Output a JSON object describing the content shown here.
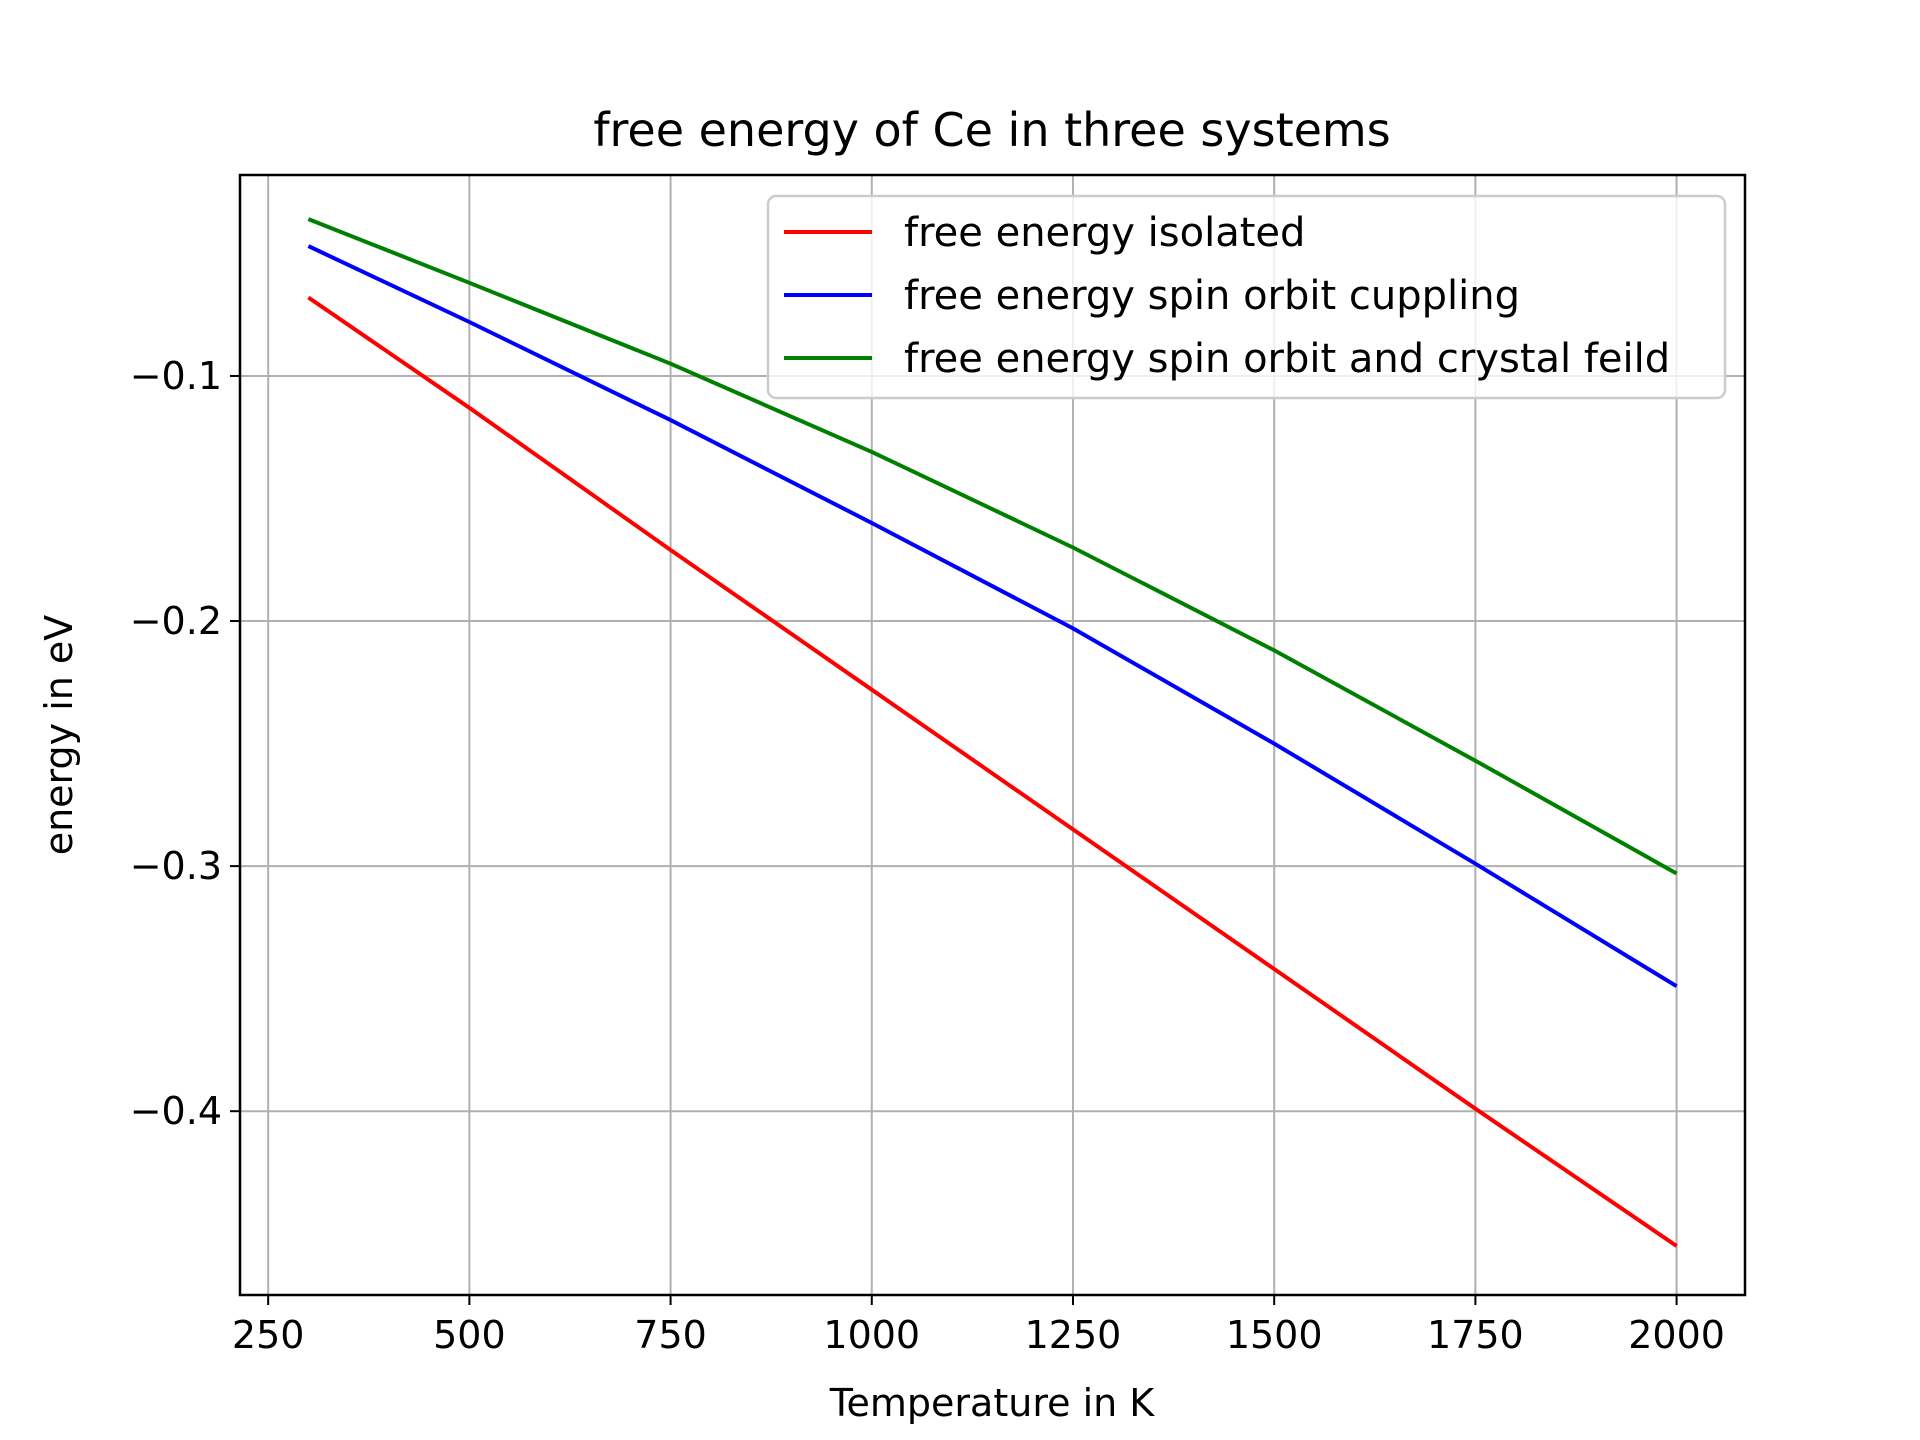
{
  "chart_data": {
    "type": "line",
    "title": "free energy of Ce in three systems",
    "xlabel": "Temperature in K",
    "ylabel": "energy in eV",
    "xlim": [
      215,
      2085
    ],
    "ylim": [
      -0.475,
      -0.018
    ],
    "grid": true,
    "legend_position": "top-right",
    "x_ticks": [
      250,
      500,
      750,
      1000,
      1250,
      1500,
      1750,
      2000
    ],
    "x_tick_labels": [
      "250",
      "500",
      "750",
      "1000",
      "1250",
      "1500",
      "1750",
      "2000"
    ],
    "y_ticks": [
      -0.1,
      -0.2,
      -0.3,
      -0.4
    ],
    "y_tick_labels": [
      "−0.1",
      "−0.2",
      "−0.3",
      "−0.4"
    ],
    "series": [
      {
        "name": "free energy isolated",
        "color": "#ff0000",
        "x": [
          300,
          500,
          750,
          1000,
          1250,
          1500,
          1750,
          2000
        ],
        "y": [
          -0.068,
          -0.113,
          -0.171,
          -0.228,
          -0.285,
          -0.342,
          -0.399,
          -0.455
        ]
      },
      {
        "name": "free energy spin orbit cuppling",
        "color": "#0000ff",
        "x": [
          300,
          500,
          750,
          1000,
          1250,
          1500,
          1750,
          2000
        ],
        "y": [
          -0.047,
          -0.078,
          -0.118,
          -0.16,
          -0.203,
          -0.25,
          -0.299,
          -0.349
        ]
      },
      {
        "name": "free energy spin orbit and crystal feild",
        "color": "#008000",
        "x": [
          300,
          500,
          750,
          1000,
          1250,
          1500,
          1750,
          2000
        ],
        "y": [
          -0.036,
          -0.062,
          -0.095,
          -0.131,
          -0.17,
          -0.212,
          -0.257,
          -0.303
        ]
      }
    ]
  }
}
